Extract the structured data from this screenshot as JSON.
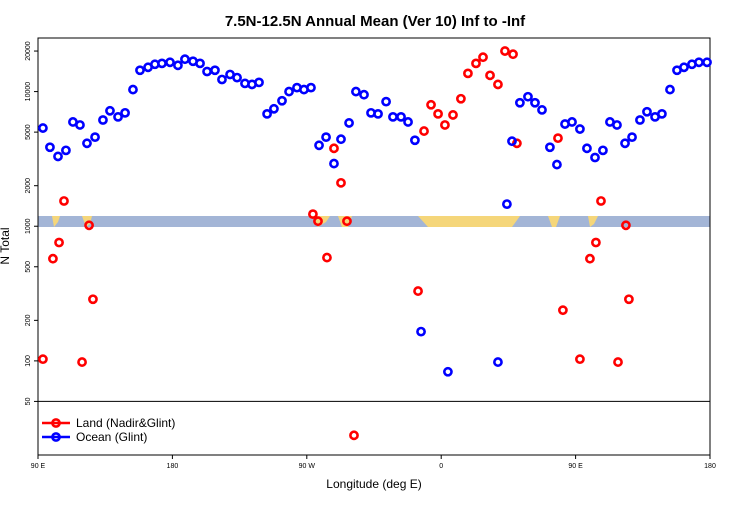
{
  "chart_data": {
    "type": "scatter",
    "title": "7.5N-12.5N Annual Mean (Ver 10)   Inf to -Inf",
    "x_label": "Longitude (deg E)",
    "y_label": "N Total",
    "xlim": [
      90,
      540
    ],
    "ylim": [
      20,
      25000
    ],
    "log_y": true,
    "legend": "lower left",
    "xticks": [
      {
        "value": 90,
        "label": "90 E"
      },
      {
        "value": 180,
        "label": "180"
      },
      {
        "value": 270,
        "label": "90 W"
      },
      {
        "value": 360,
        "label": "0"
      },
      {
        "value": 450,
        "label": "90 E"
      },
      {
        "value": 540,
        "label": "180"
      }
    ],
    "yticks": [
      50,
      100,
      200,
      500,
      1000,
      2000,
      5000,
      10000,
      20000
    ],
    "series": [
      {
        "name": "Land (Nadir&Glint)",
        "color": "#ff0000",
        "x": [
          93.3,
          100.0,
          104.1,
          107.4,
          119.5,
          124.2,
          126.8,
          274.1,
          277.5,
          283.5,
          288.2,
          292.9,
          296.9,
          301.6,
          344.5,
          348.5,
          353.2,
          357.9,
          362.5,
          367.9,
          373.2,
          377.9,
          383.3,
          388.0,
          392.7,
          398.0,
          402.7,
          408.1,
          410.7,
          438.2,
          441.5,
          452.9,
          459.6,
          463.6,
          467.0,
          478.4,
          483.7,
          485.7
        ],
        "values": [
          103,
          574,
          757,
          1540,
          98,
          1016,
          287,
          1230,
          1090,
          585,
          3790,
          2100,
          1090,
          28,
          330,
          5090,
          7980,
          6830,
          5650,
          6710,
          8850,
          13650,
          16200,
          18000,
          13200,
          11300,
          20000,
          18950,
          4130,
          4510,
          238,
          103,
          574,
          757,
          1540,
          98,
          1016,
          287
        ]
      },
      {
        "name": "Ocean (Glint)",
        "color": "#0000ff",
        "x": [
          93.3,
          98.0,
          103.4,
          108.7,
          113.4,
          118.1,
          122.8,
          128.2,
          133.5,
          138.2,
          143.6,
          148.3,
          153.6,
          158.3,
          163.7,
          168.3,
          173.0,
          178.4,
          183.7,
          188.4,
          193.8,
          198.5,
          203.2,
          208.5,
          213.2,
          218.6,
          223.3,
          228.6,
          233.3,
          238.0,
          243.4,
          248.0,
          253.4,
          258.1,
          263.4,
          268.1,
          272.8,
          278.2,
          282.9,
          288.2,
          292.9,
          298.3,
          302.9,
          308.3,
          313.0,
          317.7,
          323.1,
          327.7,
          333.1,
          337.8,
          342.4,
          346.5,
          364.5,
          398.0,
          404.0,
          407.4,
          412.7,
          418.1,
          422.8,
          427.5,
          432.8,
          437.5,
          442.9,
          447.6,
          452.9,
          457.6,
          463.0,
          468.3,
          473.0,
          477.7,
          483.1,
          487.8,
          493.1,
          497.8,
          503.2,
          507.8,
          513.2,
          517.9,
          522.6,
          527.9,
          532.6,
          538.0
        ],
        "values": [
          5360,
          3860,
          3300,
          3660,
          5950,
          5650,
          4130,
          4590,
          6150,
          7200,
          6490,
          6950,
          10350,
          14400,
          15150,
          15950,
          16200,
          16500,
          15670,
          17400,
          16800,
          16200,
          14100,
          14400,
          12300,
          13400,
          12700,
          11500,
          11300,
          11700,
          6830,
          7450,
          8550,
          10000,
          10700,
          10350,
          10700,
          3990,
          4590,
          2920,
          4430,
          5850,
          10000,
          9480,
          6950,
          6830,
          8420,
          6490,
          6490,
          5950,
          4350,
          165,
          83,
          98,
          1460,
          4280,
          8260,
          9160,
          8260,
          7310,
          3860,
          2870,
          5740,
          5950,
          5270,
          3790,
          3240,
          3660,
          5950,
          5650,
          4130,
          4590,
          6150,
          7080,
          6490,
          6830,
          10350,
          14400,
          15150,
          15950,
          16500,
          16500
        ]
      }
    ]
  }
}
